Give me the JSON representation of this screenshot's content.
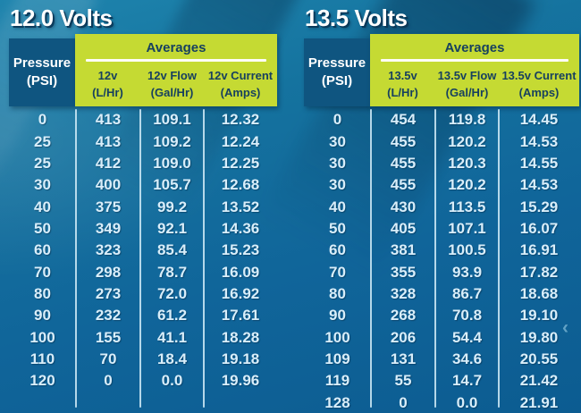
{
  "colors": {
    "background_top": "#1E84AD",
    "background_bottom": "#0C5C91",
    "header_navy": "#0F5580",
    "header_lime": "#C5DA33",
    "header_text_dark": "#17405F",
    "data_text": "#D9EEFA",
    "divider_line": "#D2ECF8",
    "title_text": "#FFFFFF"
  },
  "nav": {
    "prev_chevron": "‹"
  },
  "ui": {
    "tables": [
      {
        "title": "12.0 Volts",
        "pressure_top": "Pressure",
        "pressure_bottom": "(PSI)",
        "averages": "Averages",
        "col_headers": [
          {
            "top": "12v",
            "bottom": "(L/Hr)"
          },
          {
            "top": "12v Flow",
            "bottom": "(Gal/Hr)"
          },
          {
            "top": "12v Current",
            "bottom": "(Amps)"
          }
        ]
      },
      {
        "title": "13.5 Volts",
        "pressure_top": "Pressure",
        "pressure_bottom": "(PSI)",
        "averages": "Averages",
        "col_headers": [
          {
            "top": "13.5v",
            "bottom": "(L/Hr)"
          },
          {
            "top": "13.5v Flow",
            "bottom": "(Gal/Hr)"
          },
          {
            "top": "13.5v Current",
            "bottom": "(Amps)"
          }
        ]
      }
    ]
  },
  "chart_data": [
    {
      "type": "table",
      "title": "12.0 Volts",
      "group_header": "Averages",
      "columns": [
        "Pressure (PSI)",
        "12v (L/Hr)",
        "12v Flow (Gal/Hr)",
        "12v Current (Amps)"
      ],
      "rows": [
        [
          "0",
          "413",
          "109.1",
          "12.32"
        ],
        [
          "25",
          "413",
          "109.2",
          "12.24"
        ],
        [
          "25",
          "412",
          "109.0",
          "12.25"
        ],
        [
          "30",
          "400",
          "105.7",
          "12.68"
        ],
        [
          "40",
          "375",
          "99.2",
          "13.52"
        ],
        [
          "50",
          "349",
          "92.1",
          "14.36"
        ],
        [
          "60",
          "323",
          "85.4",
          "15.23"
        ],
        [
          "70",
          "298",
          "78.7",
          "16.09"
        ],
        [
          "80",
          "273",
          "72.0",
          "16.92"
        ],
        [
          "90",
          "232",
          "61.2",
          "17.61"
        ],
        [
          "100",
          "155",
          "41.1",
          "18.28"
        ],
        [
          "110",
          "70",
          "18.4",
          "19.18"
        ],
        [
          "120",
          "0",
          "0.0",
          "19.96"
        ]
      ]
    },
    {
      "type": "table",
      "title": "13.5 Volts",
      "group_header": "Averages",
      "columns": [
        "Pressure (PSI)",
        "13.5v (L/Hr)",
        "13.5v Flow (Gal/Hr)",
        "13.5v Current (Amps)"
      ],
      "rows": [
        [
          "0",
          "454",
          "119.8",
          "14.45"
        ],
        [
          "30",
          "455",
          "120.2",
          "14.53"
        ],
        [
          "30",
          "455",
          "120.3",
          "14.55"
        ],
        [
          "30",
          "455",
          "120.2",
          "14.53"
        ],
        [
          "40",
          "430",
          "113.5",
          "15.29"
        ],
        [
          "50",
          "405",
          "107.1",
          "16.07"
        ],
        [
          "60",
          "381",
          "100.5",
          "16.91"
        ],
        [
          "70",
          "355",
          "93.9",
          "17.82"
        ],
        [
          "80",
          "328",
          "86.7",
          "18.68"
        ],
        [
          "90",
          "268",
          "70.8",
          "19.10"
        ],
        [
          "100",
          "206",
          "54.4",
          "19.80"
        ],
        [
          "109",
          "131",
          "34.6",
          "20.55"
        ],
        [
          "119",
          "55",
          "14.7",
          "21.42"
        ],
        [
          "128",
          "0",
          "0.0",
          "21.91"
        ]
      ]
    }
  ]
}
